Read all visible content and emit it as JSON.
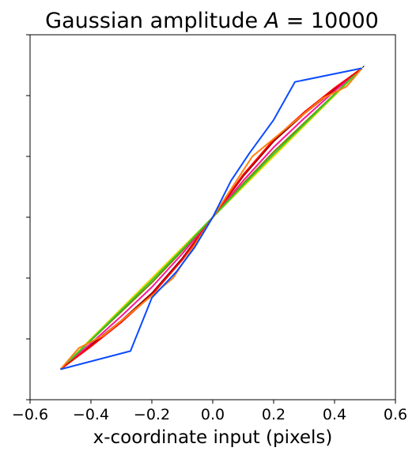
{
  "chart_data": {
    "type": "line",
    "title_prefix": "Gaussian amplitude ",
    "title_var": "A",
    "title_suffix": " = 10000",
    "xlabel": "x-coordinate input (pixels)",
    "ylabel": "",
    "xlim": [
      -0.6,
      0.6
    ],
    "ylim": [
      -0.6,
      0.6
    ],
    "x_ticks": [
      -0.6,
      -0.4,
      -0.2,
      0.0,
      0.2,
      0.4,
      0.6
    ],
    "x_tick_labels": [
      "−0.6",
      "−0.4",
      "−0.2",
      "0.0",
      "0.2",
      "0.4",
      "0.6"
    ],
    "y_ticks": [
      -0.6,
      -0.4,
      -0.2,
      0.0,
      0.2,
      0.4,
      0.6
    ],
    "y_tick_labels": [
      "",
      "",
      "",
      "",
      "",
      "",
      ""
    ],
    "grid": false,
    "reference_line": {
      "x": [
        -0.5,
        0.5
      ],
      "y": [
        -0.5,
        0.5
      ],
      "color": "#000000",
      "dash": true
    },
    "series": [
      {
        "color": "#8b0000",
        "x": [
          -0.5,
          -0.4,
          -0.3,
          -0.2,
          -0.1,
          0.0,
          0.1,
          0.2,
          0.3,
          0.4,
          0.49
        ],
        "y": [
          -0.5,
          -0.42,
          -0.34,
          -0.25,
          -0.135,
          0.0,
          0.135,
          0.25,
          0.34,
          0.42,
          0.49
        ]
      },
      {
        "color": "#ff1493",
        "x": [
          -0.5,
          -0.4,
          -0.3,
          -0.2,
          -0.1,
          0.0,
          0.1,
          0.2,
          0.3,
          0.4,
          0.49
        ],
        "y": [
          -0.5,
          -0.415,
          -0.325,
          -0.23,
          -0.12,
          0.0,
          0.12,
          0.23,
          0.325,
          0.415,
          0.49
        ]
      },
      {
        "color": "#808000",
        "x": [
          -0.5,
          -0.4,
          -0.3,
          -0.2,
          -0.1,
          0.0,
          0.1,
          0.2,
          0.3,
          0.4,
          0.49
        ],
        "y": [
          -0.5,
          -0.405,
          -0.31,
          -0.215,
          -0.11,
          0.0,
          0.11,
          0.215,
          0.31,
          0.405,
          0.49
        ]
      },
      {
        "color": "#ffd700",
        "x": [
          -0.5,
          -0.4,
          -0.3,
          -0.2,
          -0.1,
          0.0,
          0.1,
          0.2,
          0.3,
          0.4,
          0.49
        ],
        "y": [
          -0.5,
          -0.4,
          -0.3,
          -0.2,
          -0.1,
          0.0,
          0.1,
          0.2,
          0.3,
          0.4,
          0.49
        ]
      },
      {
        "color": "#32cd32",
        "x": [
          -0.5,
          -0.4,
          -0.3,
          -0.2,
          -0.1,
          0.0,
          0.1,
          0.2,
          0.3,
          0.4,
          0.49
        ],
        "y": [
          -0.5,
          -0.403,
          -0.305,
          -0.207,
          -0.105,
          0.0,
          0.105,
          0.207,
          0.305,
          0.403,
          0.49
        ]
      },
      {
        "color": "#ff0000",
        "x": [
          -0.5,
          -0.4,
          -0.3,
          -0.2,
          -0.1,
          0.0,
          0.1,
          0.2,
          0.3,
          0.4,
          0.49
        ],
        "y": [
          -0.5,
          -0.425,
          -0.345,
          -0.255,
          -0.14,
          0.0,
          0.14,
          0.255,
          0.345,
          0.425,
          0.49
        ]
      },
      {
        "color": "#ff7f0e",
        "x": [
          -0.5,
          -0.44,
          -0.36,
          -0.13,
          0.0,
          0.13,
          0.36,
          0.44,
          0.49
        ],
        "y": [
          -0.5,
          -0.43,
          -0.39,
          -0.2,
          0.0,
          0.2,
          0.39,
          0.43,
          0.49
        ]
      },
      {
        "color": "#0a4bff",
        "x": [
          -0.5,
          -0.27,
          -0.2,
          -0.12,
          -0.06,
          0.0,
          0.06,
          0.12,
          0.2,
          0.27,
          0.49
        ],
        "y": [
          -0.5,
          -0.44,
          -0.265,
          -0.18,
          -0.1,
          0.0,
          0.12,
          0.21,
          0.32,
          0.445,
          0.49
        ]
      }
    ]
  }
}
